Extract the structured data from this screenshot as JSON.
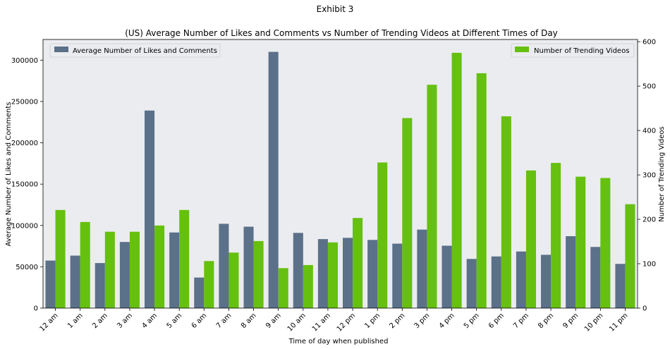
{
  "chart_data": {
    "type": "bar",
    "suptitle": "Exhibit 3",
    "title": "(US) Average Number of Likes and Comments vs Number of Trending Videos at Different Times of Day",
    "xlabel": "Time of day when published",
    "categories": [
      "12 am",
      "1 am",
      "2 am",
      "3 am",
      "4 am",
      "5 am",
      "6 am",
      "7 am",
      "8 am",
      "9 am",
      "10 am",
      "11 am",
      "12 pm",
      "1 pm",
      "2 pm",
      "3 pm",
      "4 pm",
      "5 pm",
      "6 pm",
      "7 pm",
      "8 pm",
      "9 pm",
      "10 pm",
      "11 pm"
    ],
    "series": [
      {
        "name": "Average Number of Likes and Comments",
        "axis": "left",
        "color": "#5b7089",
        "values": [
          57500,
          63500,
          54500,
          80000,
          239000,
          91500,
          37000,
          102000,
          98500,
          310000,
          91000,
          83500,
          85000,
          82500,
          78000,
          95000,
          75500,
          59500,
          62500,
          68500,
          64500,
          87000,
          74000,
          53500
        ]
      },
      {
        "name": "Number of Trending Videos",
        "axis": "right",
        "color": "#66c010",
        "values": [
          221,
          194,
          172,
          172,
          186,
          221,
          106,
          125,
          151,
          90,
          97,
          148,
          203,
          328,
          428,
          503,
          575,
          529,
          432,
          310,
          327,
          296,
          293,
          234
        ]
      }
    ],
    "ylabel_left": "Average Number of Likes and Comments",
    "ylabel_right": "Number of Trending Videos",
    "ylim_left": [
      0,
      325000
    ],
    "ylim_right": [
      0,
      605
    ],
    "yticks_left": [
      0,
      50000,
      100000,
      150000,
      200000,
      250000,
      300000
    ],
    "yticks_right": [
      0,
      100,
      200,
      300,
      400,
      500,
      600
    ],
    "grid": false,
    "plot_background": "#ebecef",
    "legend_left_placement": "upper-left",
    "legend_right_placement": "upper-right"
  }
}
